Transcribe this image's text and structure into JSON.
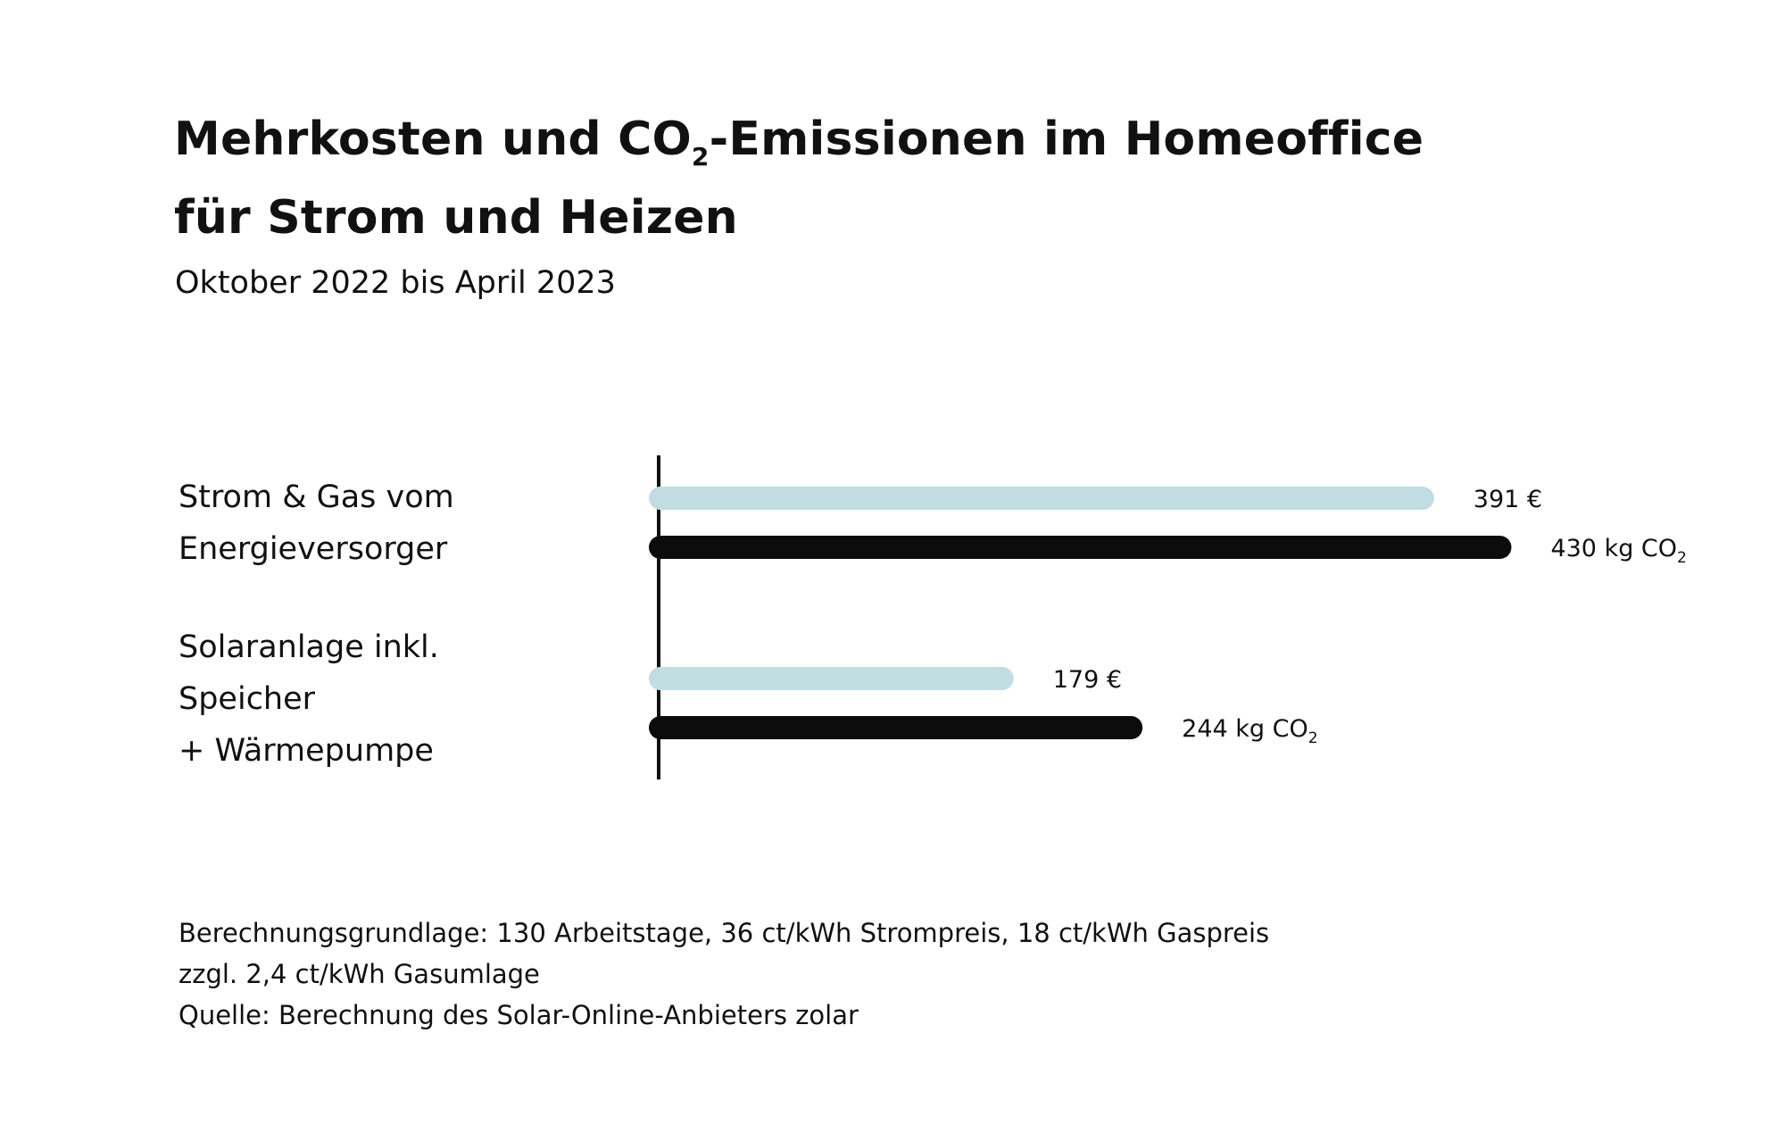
{
  "title": {
    "line1_pre": "Mehrkosten und CO",
    "line1_sub": "2",
    "line1_post": "-Emissionen im Homeoffice",
    "line2": "für Strom und Heizen"
  },
  "subtitle": "Oktober 2022 bis April 2023",
  "categories": [
    {
      "lines": [
        "Strom & Gas vom",
        "Energieversorger"
      ]
    },
    {
      "lines": [
        "Solaranlage inkl.",
        "Speicher",
        "+ Wärmepumpe"
      ]
    }
  ],
  "chart_data": {
    "type": "bar",
    "orientation": "horizontal",
    "categories": [
      "Strom & Gas vom Energieversorger",
      "Solaranlage inkl. Speicher + Wärmepumpe"
    ],
    "series": [
      {
        "values": [
          391,
          179
        ],
        "unit": "€",
        "labels": [
          "391 €",
          "179 €"
        ],
        "color": "#c2dde2"
      },
      {
        "values": [
          430,
          244
        ],
        "unit": "kg CO2",
        "labels_pre": [
          "430 kg CO",
          "244 kg CO"
        ],
        "labels_sub": "2",
        "color": "#0c0c0c"
      }
    ],
    "grid": false,
    "legend": "none",
    "title": "Mehrkosten und CO2-Emissionen im Homeoffice für Strom und Heizen",
    "subtitle": "Oktober 2022 bis April 2023"
  },
  "notes": [
    "Berechnungsgrundlage: 130 Arbeitstage, 36 ct/kWh Strompreis, 18 ct/kWh Gaspreis",
    "zzgl. 2,4 ct/kWh Gasumlage",
    "Quelle: Berechnung des Solar-Online-Anbieters zolar"
  ]
}
